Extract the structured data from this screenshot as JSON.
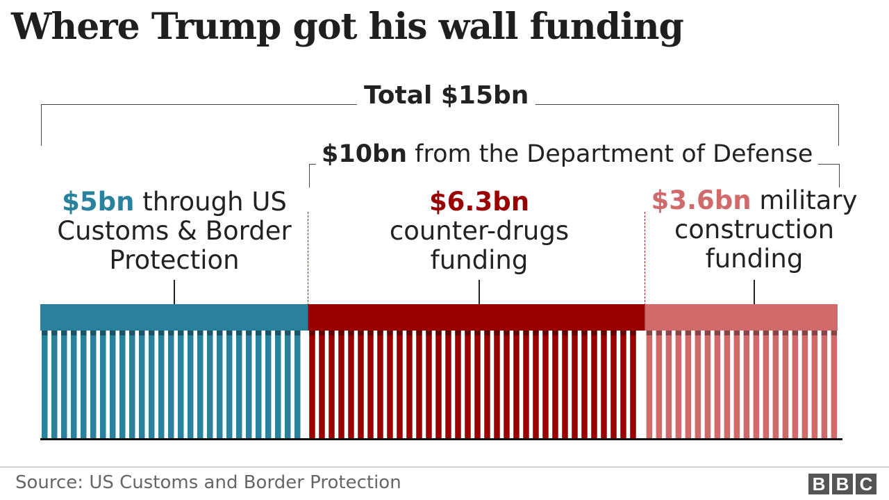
{
  "chart_data": {
    "type": "bar",
    "title": "Where Trump got his wall funding",
    "total": {
      "value_bn": 15,
      "label": "Total $15bn"
    },
    "group": {
      "value_bn": 10,
      "value_text": "$10bn",
      "rest_text": "from the Department of Defense"
    },
    "segments": [
      {
        "value_bn": 5.0,
        "value_text": "$5bn",
        "rest_text": "through US Customs & Border Protection",
        "color": "#2a819e"
      },
      {
        "value_bn": 6.3,
        "value_text": "$6.3bn",
        "rest_text": "counter-drugs funding",
        "color": "#990000"
      },
      {
        "value_bn": 3.6,
        "value_text": "$3.6bn",
        "rest_text": "military construction funding",
        "color": "#d16a6a"
      }
    ],
    "source": "Source: US Customs and Border Protection"
  },
  "branding": {
    "logo_letters": [
      "B",
      "B",
      "C"
    ]
  }
}
